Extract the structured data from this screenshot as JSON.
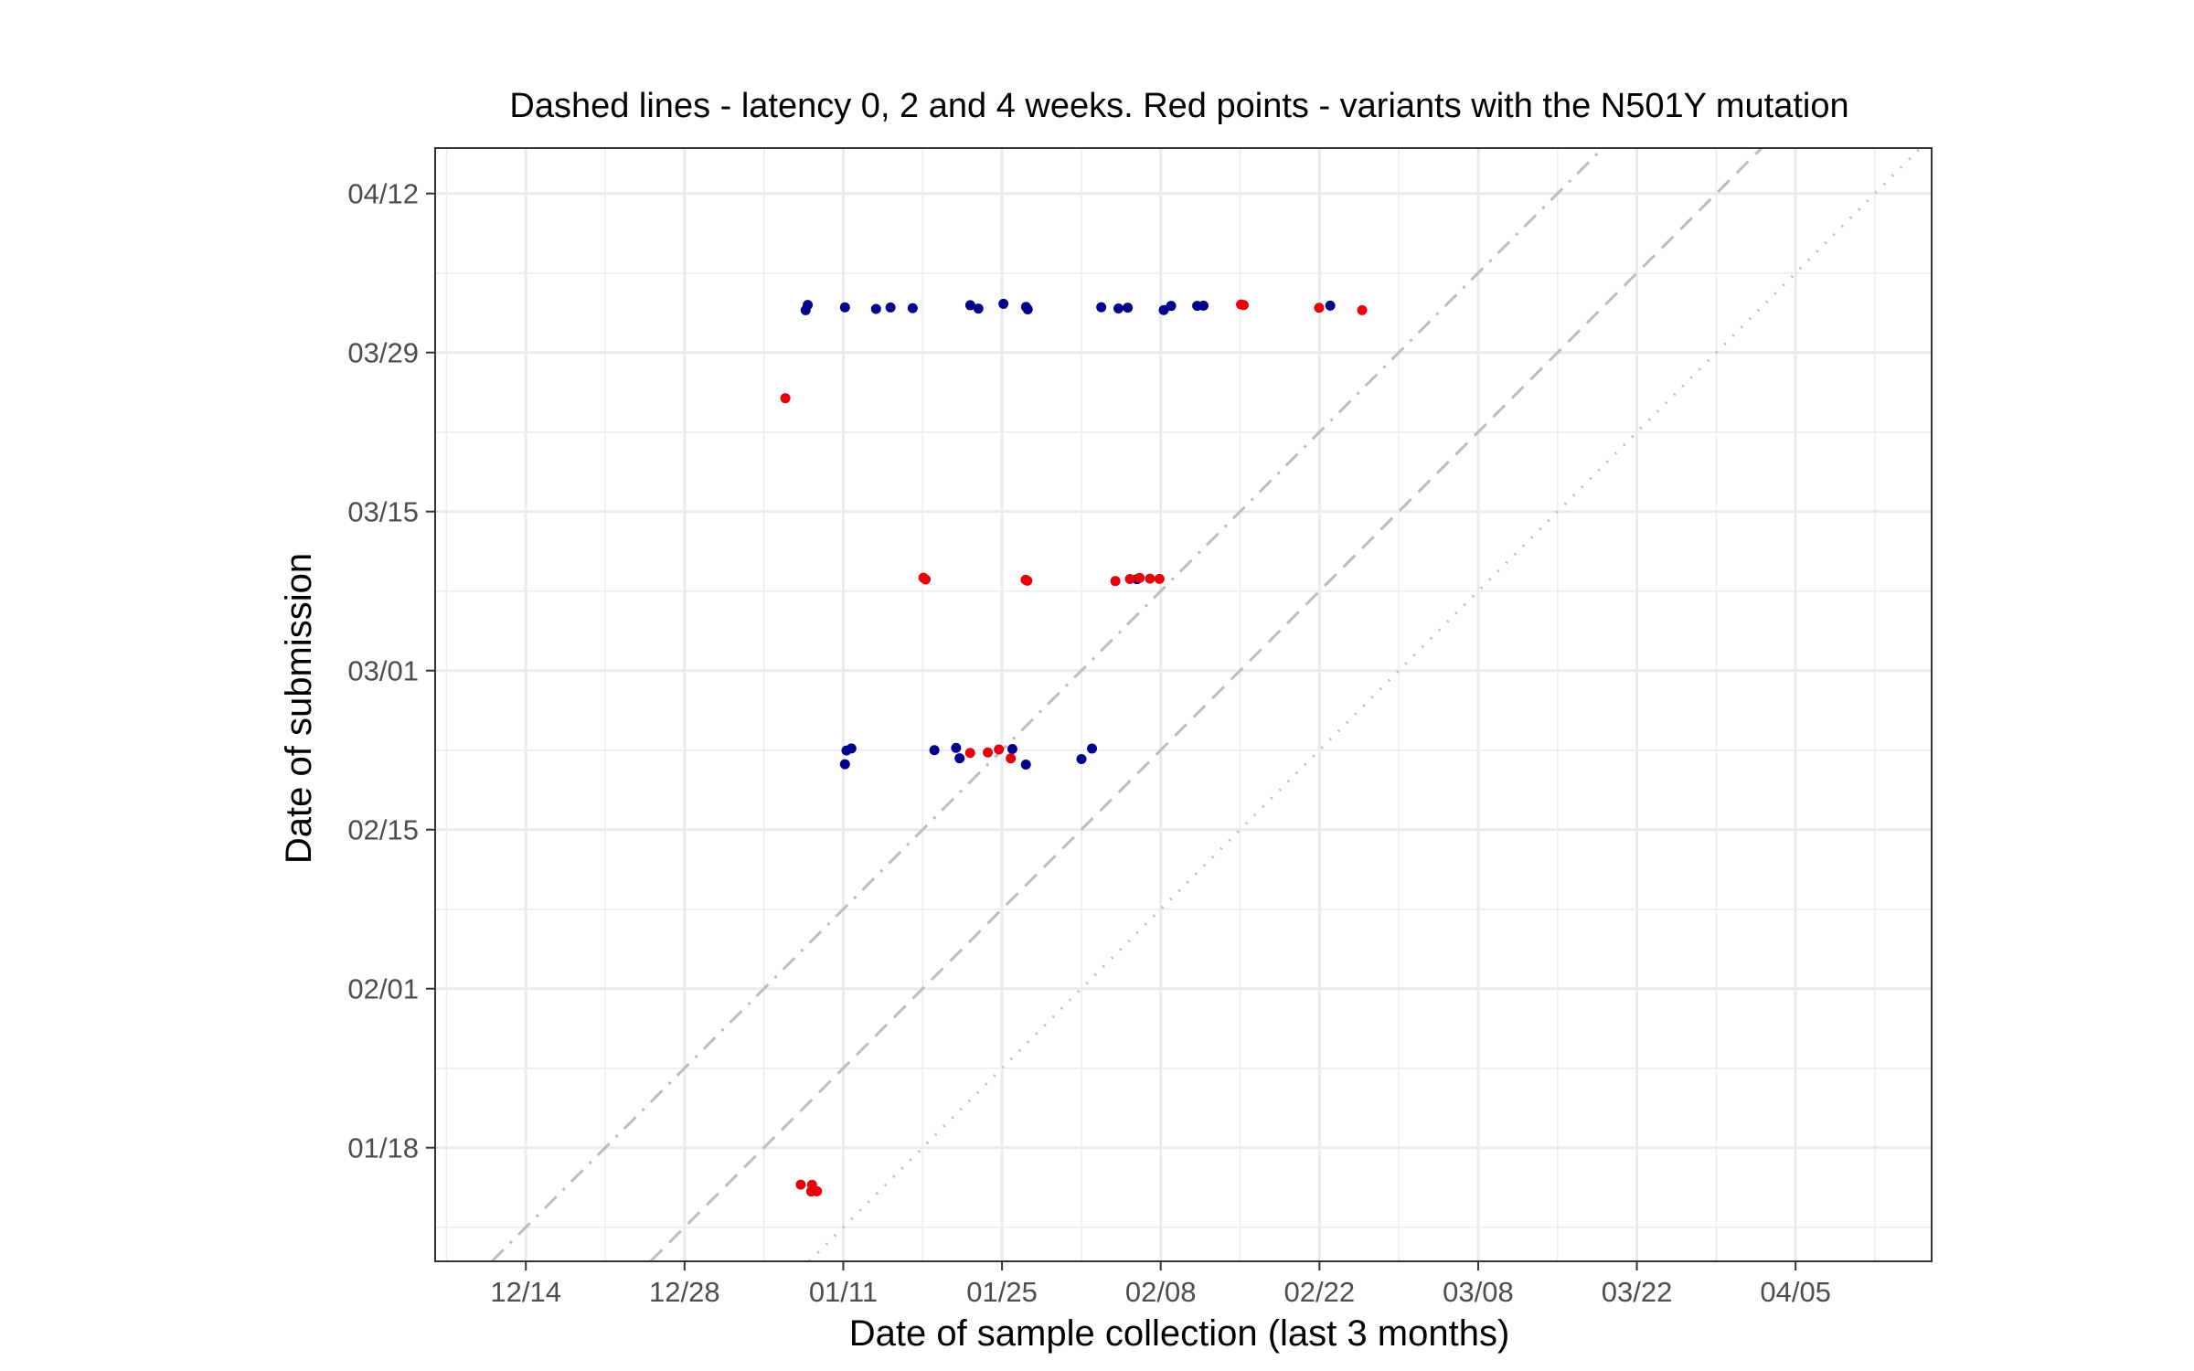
{
  "chart_data": {
    "type": "scatter",
    "title": "Dashed lines - latency 0, 2 and 4 weeks. Red points - variants with the N501Y mutation",
    "xlabel": "Date of sample collection (last 3 months)",
    "ylabel": "Date of submission",
    "x_tick_labels": [
      "12/14",
      "12/28",
      "01/11",
      "01/25",
      "02/08",
      "02/22",
      "03/08",
      "03/22",
      "04/05"
    ],
    "y_tick_labels": [
      "01/18",
      "02/01",
      "02/15",
      "03/01",
      "03/15",
      "03/29",
      "04/12"
    ],
    "x_tick_dates": [
      "2020-12-14",
      "2020-12-28",
      "2021-01-11",
      "2021-01-25",
      "2021-02-08",
      "2021-02-22",
      "2021-03-08",
      "2021-03-22",
      "2021-04-05"
    ],
    "y_tick_dates": [
      "2021-01-18",
      "2021-02-01",
      "2021-02-15",
      "2021-03-01",
      "2021-03-15",
      "2021-03-29",
      "2021-04-12"
    ],
    "xlim": [
      "2020-12-06",
      "2021-04-17"
    ],
    "ylim": [
      "2021-01-08",
      "2021-04-16"
    ],
    "grid": true,
    "reference_lines": [
      {
        "latency_weeks": 0,
        "style": "dotted"
      },
      {
        "latency_weeks": 2,
        "style": "dashed"
      },
      {
        "latency_weeks": 4,
        "style": "dashdot"
      }
    ],
    "colors": {
      "n501y": "#e8000b",
      "other": "#00008b",
      "ref_line": "#bdbdbd",
      "grid": "#ebebeb"
    },
    "series": [
      {
        "name": "",
        "color": "other",
        "points": [
          {
            "x": "2021-01-08",
            "y": "2021-04-02"
          },
          {
            "x": "2021-01-08",
            "y": "2021-04-02"
          },
          {
            "x": "2021-01-11",
            "y": "2021-04-02"
          },
          {
            "x": "2021-01-14",
            "y": "2021-04-02"
          },
          {
            "x": "2021-01-15",
            "y": "2021-04-02"
          },
          {
            "x": "2021-01-17",
            "y": "2021-04-02"
          },
          {
            "x": "2021-01-22",
            "y": "2021-04-02"
          },
          {
            "x": "2021-01-23",
            "y": "2021-04-02"
          },
          {
            "x": "2021-01-25",
            "y": "2021-04-02"
          },
          {
            "x": "2021-01-27",
            "y": "2021-04-02"
          },
          {
            "x": "2021-01-27",
            "y": "2021-04-02"
          },
          {
            "x": "2021-02-03",
            "y": "2021-04-02"
          },
          {
            "x": "2021-02-04",
            "y": "2021-04-02"
          },
          {
            "x": "2021-02-05",
            "y": "2021-04-02"
          },
          {
            "x": "2021-02-08",
            "y": "2021-04-02"
          },
          {
            "x": "2021-02-09",
            "y": "2021-04-02"
          },
          {
            "x": "2021-02-11",
            "y": "2021-04-02"
          },
          {
            "x": "2021-02-12",
            "y": "2021-04-02"
          },
          {
            "x": "2021-02-23",
            "y": "2021-04-02"
          },
          {
            "x": "2021-01-11",
            "y": "2021-02-22"
          },
          {
            "x": "2021-01-11",
            "y": "2021-02-21"
          },
          {
            "x": "2021-01-12",
            "y": "2021-02-22"
          },
          {
            "x": "2021-01-19",
            "y": "2021-02-22"
          },
          {
            "x": "2021-01-21",
            "y": "2021-02-22"
          },
          {
            "x": "2021-01-21",
            "y": "2021-02-21"
          },
          {
            "x": "2021-01-26",
            "y": "2021-02-22"
          },
          {
            "x": "2021-01-27",
            "y": "2021-02-21"
          },
          {
            "x": "2021-02-01",
            "y": "2021-02-21"
          },
          {
            "x": "2021-02-02",
            "y": "2021-02-22"
          },
          {
            "x": "2021-02-06",
            "y": "2021-03-09"
          }
        ]
      },
      {
        "name": "",
        "color": "n501y",
        "points": [
          {
            "x": "2021-01-06",
            "y": "2021-03-25"
          },
          {
            "x": "2021-01-18",
            "y": "2021-03-09"
          },
          {
            "x": "2021-01-18",
            "y": "2021-03-09"
          },
          {
            "x": "2021-01-27",
            "y": "2021-03-09"
          },
          {
            "x": "2021-01-27",
            "y": "2021-03-09"
          },
          {
            "x": "2021-02-04",
            "y": "2021-03-09"
          },
          {
            "x": "2021-02-05",
            "y": "2021-03-09"
          },
          {
            "x": "2021-02-06",
            "y": "2021-03-09"
          },
          {
            "x": "2021-02-07",
            "y": "2021-03-09"
          },
          {
            "x": "2021-02-08",
            "y": "2021-03-09"
          },
          {
            "x": "2021-01-22",
            "y": "2021-02-22"
          },
          {
            "x": "2021-01-24",
            "y": "2021-02-22"
          },
          {
            "x": "2021-01-25",
            "y": "2021-02-22"
          },
          {
            "x": "2021-01-26",
            "y": "2021-02-21"
          },
          {
            "x": "2021-02-15",
            "y": "2021-04-02"
          },
          {
            "x": "2021-02-15",
            "y": "2021-04-02"
          },
          {
            "x": "2021-02-22",
            "y": "2021-04-02"
          },
          {
            "x": "2021-02-26",
            "y": "2021-04-02"
          },
          {
            "x": "2021-01-07",
            "y": "2021-01-15"
          },
          {
            "x": "2021-01-08",
            "y": "2021-01-15"
          },
          {
            "x": "2021-01-08",
            "y": "2021-01-14"
          },
          {
            "x": "2021-01-09",
            "y": "2021-01-14"
          }
        ]
      }
    ]
  }
}
